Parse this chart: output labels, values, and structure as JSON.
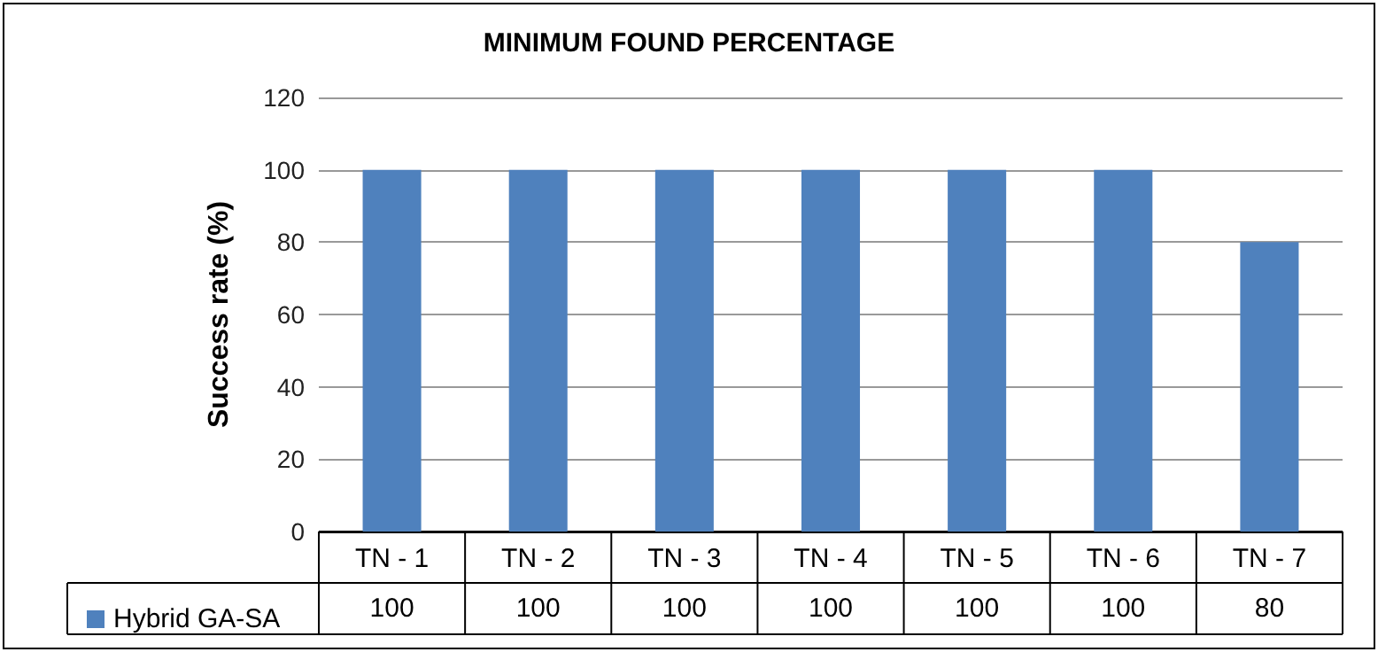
{
  "chart_data": {
    "type": "bar",
    "title": "MINIMUM FOUND PERCENTAGE",
    "ylabel": "Success rate (%)",
    "categories": [
      "TN - 1",
      "TN - 2",
      "TN - 3",
      "TN - 4",
      "TN - 5",
      "TN - 6",
      "TN - 7"
    ],
    "series": [
      {
        "name": "Hybrid GA-SA",
        "color": "#4f81bd",
        "values": [
          100,
          100,
          100,
          100,
          100,
          100,
          80
        ]
      }
    ],
    "ylim": [
      0,
      120
    ],
    "yticks": [
      0,
      20,
      40,
      60,
      80,
      100,
      120
    ],
    "grid": "y",
    "legend": "bottom left",
    "data_labels": true
  }
}
